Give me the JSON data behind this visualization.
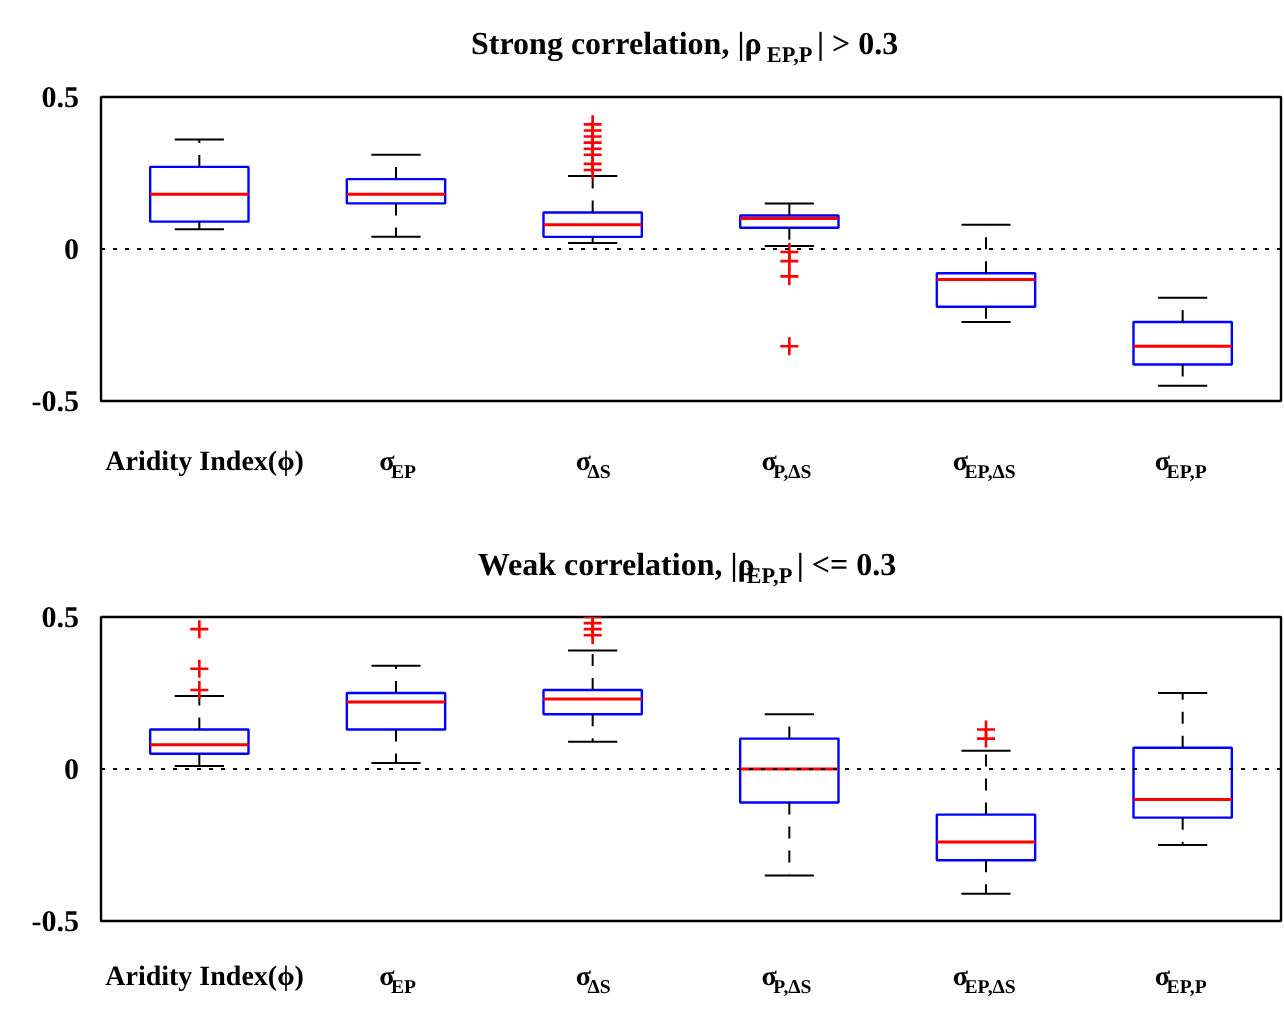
{
  "chart_data": [
    {
      "type": "box",
      "title": "Strong correlation, |ρ$_{EP,P}$| > 0.3",
      "categories": [
        "Aridity Index(ϕ)",
        "σ$_{EP}$",
        "σ$_{ΔS}$",
        "σ$_{P,ΔS}$",
        "σ$_{EP,ΔS}$",
        "σ$_{EP,P}$"
      ],
      "boxes": [
        {
          "low": 0.065,
          "q1": 0.09,
          "median": 0.18,
          "q3": 0.27,
          "high": 0.36
        },
        {
          "low": 0.04,
          "q1": 0.15,
          "median": 0.18,
          "q3": 0.23,
          "high": 0.31
        },
        {
          "low": 0.02,
          "q1": 0.04,
          "median": 0.08,
          "q3": 0.12,
          "high": 0.24,
          "outliers": [
            0.41,
            0.39,
            0.37,
            0.35,
            0.33,
            0.31,
            0.28,
            0.26
          ]
        },
        {
          "low": 0.01,
          "q1": 0.07,
          "median": 0.1,
          "q3": 0.11,
          "high": 0.15,
          "outliers": [
            -0.01,
            -0.04,
            -0.09,
            -0.32
          ]
        },
        {
          "low": -0.24,
          "q1": -0.19,
          "median": -0.1,
          "q3": -0.08,
          "high": 0.08
        },
        {
          "low": -0.45,
          "q1": -0.38,
          "median": -0.32,
          "q3": -0.24,
          "high": -0.16
        }
      ],
      "ylim": [
        -0.5,
        0.5
      ],
      "yticks": [
        -0.5,
        0,
        0.5
      ],
      "ref_lines": [
        {
          "axis": "y",
          "value": 0,
          "color": "#000000",
          "line_style": "dotted"
        }
      ]
    },
    {
      "type": "box",
      "title": "Weak correlation, |ρ$_{EP,P}$| <= 0.3",
      "categories": [
        "Aridity Index(ϕ)",
        "σ$_{EP}$",
        "σ$_{ΔS}$",
        "σ$_{P,ΔS}$",
        "σ$_{EP,ΔS}$",
        "σ$_{EP,P}$"
      ],
      "boxes": [
        {
          "low": 0.01,
          "q1": 0.05,
          "median": 0.08,
          "q3": 0.13,
          "high": 0.24,
          "outliers": [
            0.46,
            0.33,
            0.26
          ]
        },
        {
          "low": 0.02,
          "q1": 0.13,
          "median": 0.22,
          "q3": 0.25,
          "high": 0.34
        },
        {
          "low": 0.09,
          "q1": 0.18,
          "median": 0.23,
          "q3": 0.26,
          "high": 0.39,
          "outliers": [
            0.5,
            0.48,
            0.46,
            0.44
          ]
        },
        {
          "low": -0.35,
          "q1": -0.11,
          "median": 0.0,
          "q3": 0.1,
          "high": 0.18
        },
        {
          "low": -0.41,
          "q1": -0.3,
          "median": -0.24,
          "q3": -0.15,
          "high": 0.06,
          "outliers": [
            0.13,
            0.1
          ]
        },
        {
          "low": -0.25,
          "q1": -0.16,
          "median": -0.1,
          "q3": 0.07,
          "high": 0.25
        }
      ],
      "ylim": [
        -0.5,
        0.5
      ],
      "yticks": [
        -0.5,
        0,
        0.5
      ],
      "ref_lines": [
        {
          "axis": "y",
          "value": 0,
          "color": "#000000",
          "line_style": "dotted"
        }
      ]
    }
  ]
}
